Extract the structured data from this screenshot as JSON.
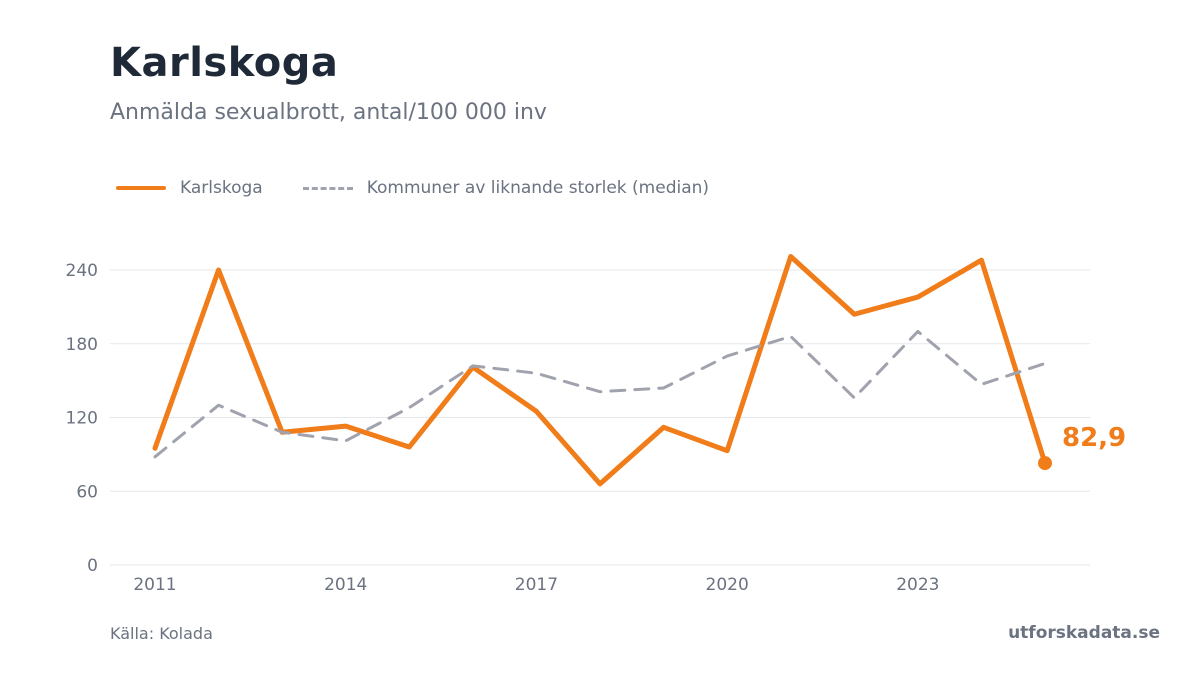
{
  "title": "Karlskoga",
  "subtitle": "Anmälda sexualbrott, antal/100 000 inv",
  "legend": {
    "series1": "Karlskoga",
    "series2": "Kommuner av liknande storlek (median)"
  },
  "footer": {
    "source": "Källa: Kolada",
    "brand": "utforskadata.se"
  },
  "colors": {
    "primary": "#f07c1a",
    "median": "#a0a3ae",
    "grid": "#e5e7eb",
    "tick": "#6b7280"
  },
  "chart_data": {
    "type": "line",
    "x": [
      2011,
      2012,
      2013,
      2014,
      2015,
      2016,
      2017,
      2018,
      2019,
      2020,
      2021,
      2022,
      2023,
      2024,
      2025
    ],
    "x_ticks": [
      "2011",
      "2014",
      "2017",
      "2020",
      "2023"
    ],
    "y_ticks": [
      "0",
      "60",
      "120",
      "180",
      "240"
    ],
    "ylim": [
      0,
      240
    ],
    "grid": true,
    "legend_position": "top-left",
    "series": [
      {
        "name": "Karlskoga",
        "style": "solid",
        "values": [
          95,
          240,
          108,
          113,
          96,
          161,
          125,
          66,
          112,
          93,
          251,
          204,
          218,
          248,
          82.9
        ]
      },
      {
        "name": "Kommuner av liknande storlek (median)",
        "style": "dashed",
        "values": [
          88,
          130,
          108,
          101,
          128,
          162,
          156,
          141,
          144,
          170,
          186,
          136,
          190,
          147,
          164
        ]
      }
    ],
    "last_value_label": "82,9"
  }
}
